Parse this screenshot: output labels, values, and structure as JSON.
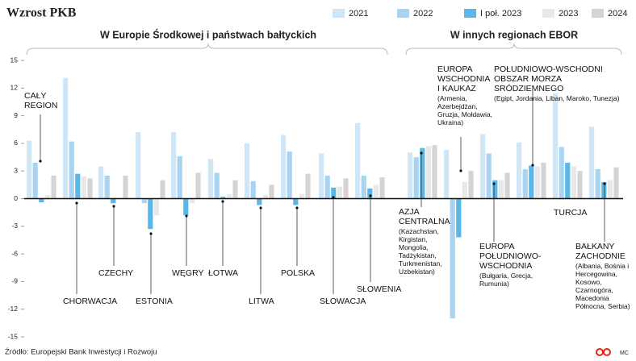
{
  "chart_data": {
    "type": "bar",
    "title": "Wzrost PKB",
    "region_titles": [
      "W Europie Środkowej i państwach bałtyckich",
      "W innych regionach EBOR"
    ],
    "categories": [
      "CAŁY REGION",
      "CHORWACJA",
      "CZECHY",
      "ESTONIA",
      "WĘGRY",
      "ŁOTWA",
      "LITWA",
      "POLSKA",
      "SŁOWACJA",
      "SŁOWENIA",
      "AZJA CENTRALNA",
      "EUROPA WSCHODNIA I KAUKAZ",
      "EUROPA POŁUDNIOWO-WSCHODNIA",
      "POŁUDNIOWO-WSCHODNI OBSZAR MORZA SRÓDZIEMNEGO",
      "TURCJA",
      "BAŁKANY ZACHODNIE"
    ],
    "category_notes": [
      null,
      null,
      null,
      null,
      null,
      null,
      null,
      null,
      null,
      null,
      "(Kazachstan, Kirgistan, Mongolia, Tadżykistan, Turkmenistan, Uzbekistan)",
      "(Armenia, Azerbejdżan, Gruzja, Mołdawia, Ukraina)",
      "(Bułgaria, Grecja, Rumunia)",
      "(Egipt, Jordania, Liban, Maroko, Tunezja)",
      null,
      "(Albania, Bośnia i Hercegowina, Kosowo, Czarnogóra, Macedonia Północna, Serbia)"
    ],
    "series": [
      {
        "name": "2021",
        "color": "#cfe6f7",
        "values": [
          6.3,
          13.1,
          3.5,
          7.2,
          7.2,
          4.3,
          6.0,
          6.9,
          4.9,
          8.2,
          5.0,
          5.3,
          7.0,
          6.1,
          11.4,
          7.8
        ]
      },
      {
        "name": "2022",
        "color": "#a8d4f1",
        "values": [
          3.9,
          6.2,
          2.5,
          -0.5,
          4.6,
          2.8,
          1.9,
          5.1,
          2.5,
          2.5,
          4.5,
          -13.0,
          4.9,
          3.2,
          5.6,
          3.2
        ]
      },
      {
        "name": "I poł. 2023",
        "color": "#5ab7e6",
        "values": [
          -0.4,
          2.7,
          -0.5,
          -3.3,
          -1.8,
          0.2,
          -0.7,
          -0.7,
          1.2,
          1.1,
          5.5,
          -4.2,
          2.0,
          3.6,
          3.9,
          1.8
        ]
      },
      {
        "name": "2023",
        "color": "#e8e8e8",
        "values": [
          0.4,
          2.4,
          0.0,
          -1.8,
          -0.5,
          0.5,
          0.4,
          0.5,
          1.3,
          1.5,
          5.7,
          1.8,
          2.0,
          3.5,
          3.5,
          2.0
        ]
      },
      {
        "name": "2024",
        "color": "#d4d4d4",
        "values": [
          2.5,
          2.2,
          2.5,
          2.0,
          2.8,
          2.0,
          1.5,
          2.7,
          2.2,
          2.3,
          5.8,
          3.0,
          2.8,
          3.9,
          3.0,
          3.4
        ]
      }
    ],
    "ylim": [
      -15,
      15
    ],
    "yticks": [
      15,
      12,
      9,
      6,
      3,
      0,
      -3,
      -6,
      -9,
      -12,
      -15
    ],
    "source": "Źródło: Europejski Bank Inwestycji i Rozwoju",
    "credit": "MC"
  }
}
